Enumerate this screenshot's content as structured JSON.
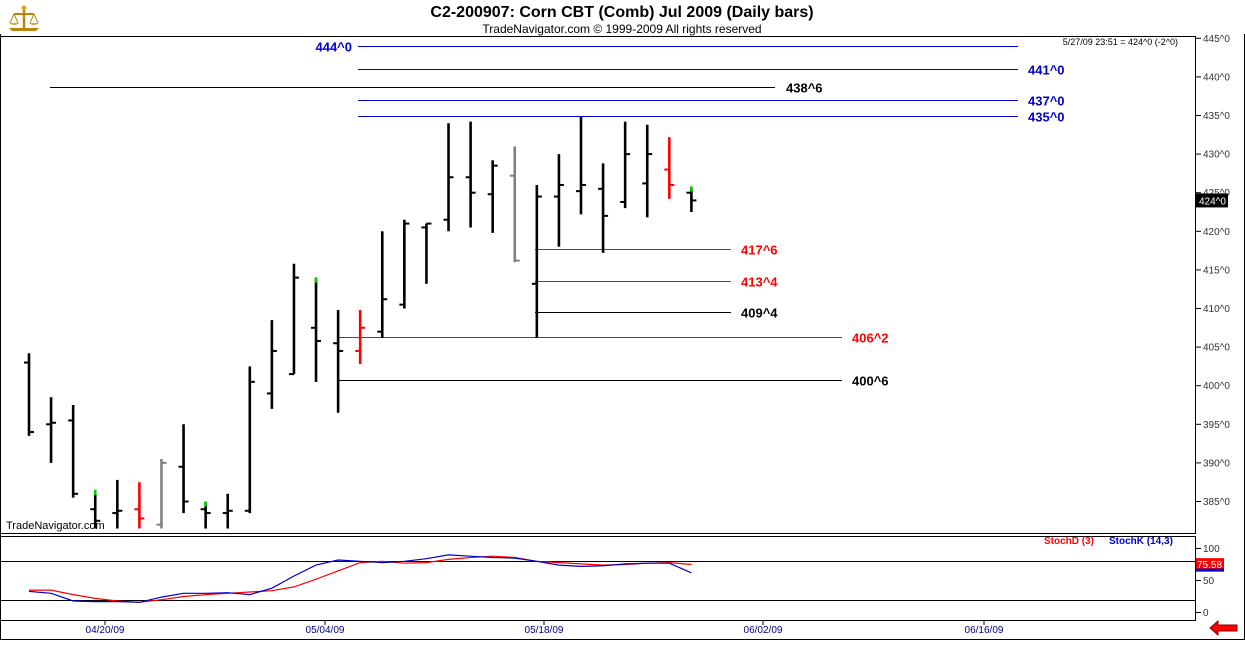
{
  "header": {
    "title": "C2-200907:  Corn CBT (Comb) Jul 2009  (Daily bars)",
    "subtitle": "TradeNavigator.com © 1999-2009 All rights reserved",
    "timestamp": "5/27/09 23:51 = 424^0 (-2^0)",
    "watermark": "TradeNavigator.com"
  },
  "colors": {
    "up": "#000000",
    "down_red": "#ff0000",
    "gray": "#808080",
    "tick_green": "#00cc00",
    "blue_level": "#0000cc",
    "red_level": "#ff0000",
    "black_level": "#000000",
    "stochD": "#ff0000",
    "stochK": "#0000cc"
  },
  "chart_data": {
    "type": "ohlc",
    "price_axis": {
      "range": [
        380,
        446
      ],
      "tick_values": [
        385,
        390,
        395,
        400,
        405,
        410,
        415,
        420,
        425,
        430,
        435,
        440,
        445
      ],
      "tick_labels": [
        "385^0",
        "390^0",
        "395^0",
        "400^0",
        "405^0",
        "410^0",
        "415^0",
        "420^0",
        "425^0",
        "430^0",
        "435^0",
        "440^0",
        "445^0"
      ]
    },
    "last_price": {
      "label": "424^0",
      "value": 424
    },
    "date_labels": [
      "04/20/09",
      "05/04/09",
      "05/18/09",
      "06/02/09",
      "06/16/09"
    ],
    "bars": [
      {
        "o": 403,
        "h": 404.2,
        "l": 393.5,
        "c": 394,
        "color": "black"
      },
      {
        "o": 395,
        "h": 398.5,
        "l": 390,
        "c": 395.2,
        "color": "black"
      },
      {
        "o": 395.5,
        "h": 397.5,
        "l": 385.5,
        "c": 386,
        "color": "black"
      },
      {
        "o": 384,
        "h": 386.5,
        "l": 381.5,
        "c": 382.5,
        "color": "black",
        "tick": "green"
      },
      {
        "o": 383.5,
        "h": 387.8,
        "l": 381.5,
        "c": 383.8,
        "color": "black"
      },
      {
        "o": 384,
        "h": 387.5,
        "l": 381.5,
        "c": 382.8,
        "color": "red"
      },
      {
        "o": 382,
        "h": 390.5,
        "l": 381.5,
        "c": 390,
        "color": "gray"
      },
      {
        "o": 389.5,
        "h": 395,
        "l": 383.5,
        "c": 385,
        "color": "black"
      },
      {
        "o": 384,
        "h": 385,
        "l": 381.5,
        "c": 383.5,
        "color": "black",
        "tick": "green"
      },
      {
        "o": 383.5,
        "h": 386,
        "l": 381.5,
        "c": 383.8,
        "color": "black"
      },
      {
        "o": 383.8,
        "h": 402.5,
        "l": 383.5,
        "c": 400.5,
        "color": "black"
      },
      {
        "o": 399,
        "h": 408.5,
        "l": 397,
        "c": 404.5,
        "color": "black"
      },
      {
        "o": 401.5,
        "h": 415.8,
        "l": 401.5,
        "c": 414,
        "color": "black"
      },
      {
        "o": 407.5,
        "h": 414,
        "l": 400.5,
        "c": 405.8,
        "color": "black",
        "tick": "green"
      },
      {
        "o": 405.5,
        "h": 409.8,
        "l": 396.5,
        "c": 404.5,
        "color": "black"
      },
      {
        "o": 404.5,
        "h": 409.8,
        "l": 402.8,
        "c": 407.5,
        "color": "red"
      },
      {
        "o": 407,
        "h": 420,
        "l": 406.2,
        "c": 411.2,
        "color": "black"
      },
      {
        "o": 410.5,
        "h": 421.5,
        "l": 410,
        "c": 421,
        "color": "black"
      },
      {
        "o": 420.5,
        "h": 421,
        "l": 413.2,
        "c": 421,
        "color": "black"
      },
      {
        "o": 421.5,
        "h": 434,
        "l": 420,
        "c": 427,
        "color": "black"
      },
      {
        "o": 427,
        "h": 434.2,
        "l": 420.5,
        "c": 425,
        "color": "black"
      },
      {
        "o": 424.8,
        "h": 429.2,
        "l": 419.8,
        "c": 428.5,
        "color": "black"
      },
      {
        "o": 427.2,
        "h": 431,
        "l": 416,
        "c": 416.2,
        "color": "gray"
      },
      {
        "o": 413.2,
        "h": 426,
        "l": 406.2,
        "c": 424.5,
        "color": "black"
      },
      {
        "o": 424.5,
        "h": 430,
        "l": 418,
        "c": 426,
        "color": "black"
      },
      {
        "o": 425.2,
        "h": 434.8,
        "l": 422.2,
        "c": 426,
        "color": "black"
      },
      {
        "o": 425.5,
        "h": 428.8,
        "l": 417.2,
        "c": 422,
        "color": "black"
      },
      {
        "o": 423.8,
        "h": 434.2,
        "l": 423,
        "c": 430,
        "color": "black"
      },
      {
        "o": 426.2,
        "h": 433.8,
        "l": 421.8,
        "c": 430,
        "color": "black"
      },
      {
        "o": 428,
        "h": 432.2,
        "l": 424.2,
        "c": 426,
        "color": "red"
      },
      {
        "o": 425,
        "h": 425.8,
        "l": 422.5,
        "c": 424,
        "color": "black",
        "tick": "green"
      }
    ],
    "levels": [
      {
        "value": 444,
        "label": "444^0",
        "color": "blue"
      },
      {
        "value": 441,
        "label": "441^0",
        "color": "blue"
      },
      {
        "value": 438.75,
        "label": "438^6",
        "color": "black"
      },
      {
        "value": 437,
        "label": "437^0",
        "color": "blue"
      },
      {
        "value": 435,
        "label": "435^0",
        "color": "blue"
      },
      {
        "value": 417.75,
        "label": "417^6",
        "color": "red"
      },
      {
        "value": 413.5,
        "label": "413^4",
        "color": "red"
      },
      {
        "value": 409.5,
        "label": "409^4",
        "color": "black"
      },
      {
        "value": 406.25,
        "label": "406^2",
        "color": "red"
      },
      {
        "value": 400.75,
        "label": "400^6",
        "color": "black"
      }
    ],
    "stochastic": {
      "range": [
        0,
        100
      ],
      "tick_values": [
        0,
        50,
        100
      ],
      "tick_labels": [
        "0",
        "50",
        "100"
      ],
      "overbought": 80,
      "oversold": 20,
      "value_label": "75.58",
      "legend": [
        {
          "name": "StochD (3)",
          "color": "red"
        },
        {
          "name": "StochK (14,3)",
          "color": "blue"
        }
      ],
      "stochD": [
        35,
        35,
        28,
        22,
        18,
        16,
        20,
        25,
        28,
        30,
        32,
        34,
        40,
        52,
        65,
        78,
        80,
        77,
        78,
        83,
        86,
        88,
        86,
        80,
        78,
        76,
        74,
        75,
        77,
        78,
        75
      ],
      "stochK": [
        33,
        30,
        18,
        17,
        17,
        16,
        24,
        30,
        30,
        31,
        28,
        38,
        57,
        74,
        82,
        80,
        78,
        80,
        84,
        90,
        88,
        86,
        85,
        80,
        74,
        72,
        73,
        76,
        77,
        77,
        62
      ]
    }
  }
}
